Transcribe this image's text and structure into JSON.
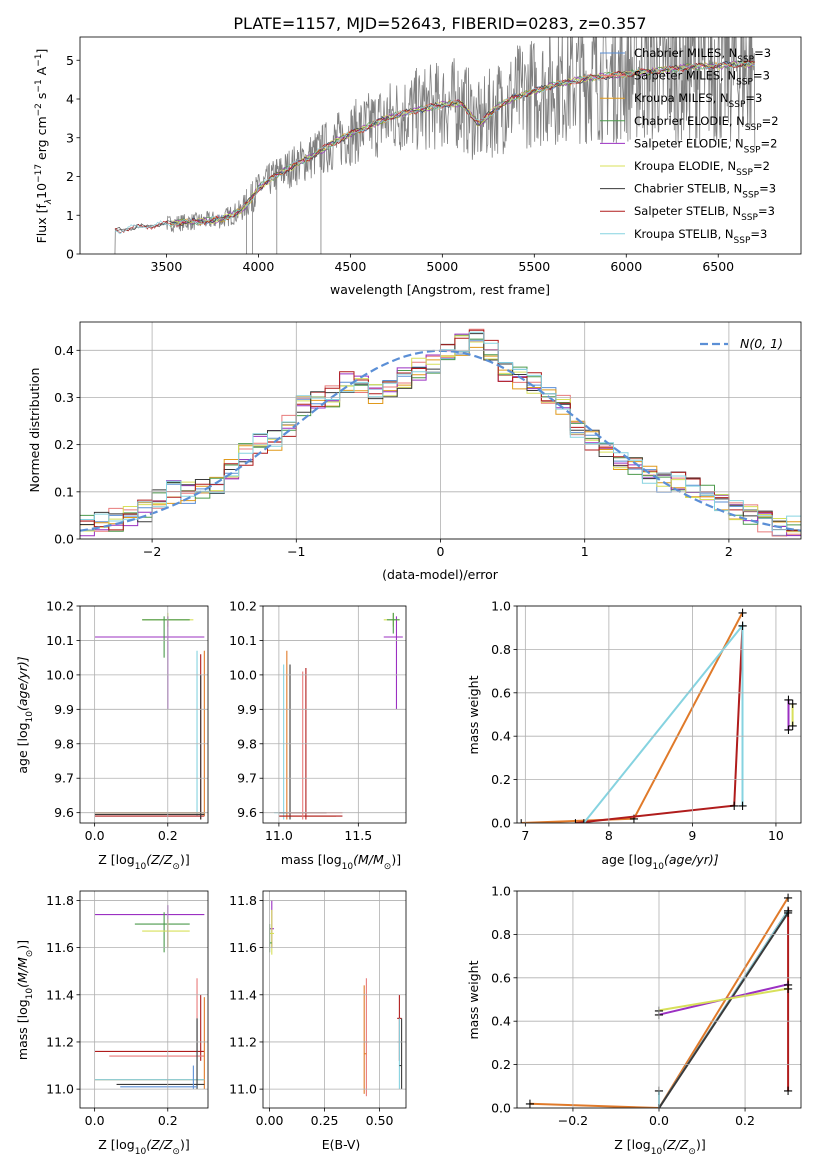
{
  "figure_title": "PLATE=1157, MJD=52643, FIBERID=0283, z=0.357",
  "colors": {
    "chabrier_miles": "#5b8fd6",
    "salpeter_miles": "#e87b7b",
    "kroupa_miles": "#e09a1c",
    "chabrier_elodie": "#4c9a4c",
    "salpeter_elodie": "#9b30c2",
    "kroupa_elodie": "#d8e05a",
    "chabrier_stelib": "#3a3a3a",
    "salpeter_stelib": "#b01c1c",
    "kroupa_stelib": "#86d3e0",
    "spectrum": "#808080",
    "gaussian": "#5b8fd6",
    "orange_model": "#e07a2a"
  },
  "chart_data": [
    {
      "id": "spectrum",
      "type": "line",
      "xlabel": "wavelength [Angstrom, rest frame]",
      "ylabel_main": "Flux [f",
      "ylabel_sub": "λ",
      "ylabel_rest": "10",
      "ylabel_exp1": "−17",
      "ylabel_mid": " erg cm",
      "ylabel_exp2": "−2",
      "ylabel_end": " s",
      "ylabel_exp3": "−1",
      "ylabel_a": " A",
      "ylabel_exp4": "−1",
      "ylabel_close": "]",
      "xlim": [
        3030,
        6950
      ],
      "ylim": [
        0,
        5.6
      ],
      "xticks": [
        3500,
        4000,
        4500,
        5000,
        5500,
        6000,
        6500
      ],
      "yticks": [
        0,
        1,
        2,
        3,
        4,
        5
      ],
      "grid": false,
      "legend_position": "right",
      "legend": [
        {
          "label": "Chabrier MILES, N",
          "sub": "SSP",
          "suffix": "=3",
          "color": "chabrier_miles"
        },
        {
          "label": "Salpeter MILES, N",
          "sub": "SSP",
          "suffix": "=3",
          "color": "salpeter_miles"
        },
        {
          "label": "Kroupa MILES, N",
          "sub": "SSP",
          "suffix": "=3",
          "color": "kroupa_miles"
        },
        {
          "label": "Chabrier ELODIE, N",
          "sub": "SSP",
          "suffix": "=2",
          "color": "chabrier_elodie"
        },
        {
          "label": "Salpeter ELODIE, N",
          "sub": "SSP",
          "suffix": "=2",
          "color": "salpeter_elodie"
        },
        {
          "label": "Kroupa ELODIE, N",
          "sub": "SSP",
          "suffix": "=2",
          "color": "kroupa_elodie"
        },
        {
          "label": "Chabrier STELIB, N",
          "sub": "SSP",
          "suffix": "=3",
          "color": "chabrier_stelib"
        },
        {
          "label": "Salpeter STELIB, N",
          "sub": "SSP",
          "suffix": "=3",
          "color": "salpeter_stelib"
        },
        {
          "label": "Kroupa STELIB, N",
          "sub": "SSP",
          "suffix": "=3",
          "color": "kroupa_stelib"
        }
      ],
      "model_continuum": {
        "x": [
          3220,
          3300,
          3400,
          3500,
          3600,
          3700,
          3800,
          3900,
          3950,
          4000,
          4100,
          4200,
          4300,
          4400,
          4500,
          4600,
          4700,
          4800,
          4900,
          5000,
          5100,
          5200,
          5300,
          5400,
          5500,
          5600,
          5700,
          5800,
          5900,
          6000,
          6100,
          6200,
          6300,
          6400,
          6500,
          6600,
          6700
        ],
        "y": [
          0.6,
          0.66,
          0.72,
          0.78,
          0.82,
          0.85,
          0.9,
          1.1,
          1.35,
          1.7,
          2.05,
          2.3,
          2.55,
          2.85,
          3.1,
          3.3,
          3.5,
          3.65,
          3.75,
          3.85,
          3.9,
          3.35,
          3.8,
          4.05,
          4.2,
          4.35,
          4.45,
          4.55,
          4.6,
          4.65,
          4.7,
          4.75,
          4.8,
          4.85,
          4.85,
          4.9,
          4.9
        ]
      }
    },
    {
      "id": "residuals",
      "type": "line",
      "xlabel": "(data-model)/error",
      "ylabel": "Normed distribution",
      "xlim": [
        -2.5,
        2.5
      ],
      "ylim": [
        0,
        0.46
      ],
      "xticks": [
        -2,
        -1,
        0,
        1,
        2
      ],
      "yticks": [
        0.0,
        0.1,
        0.2,
        0.3,
        0.4
      ],
      "grid": true,
      "legend_position": "top-right",
      "legend_label": "N(0, 1)",
      "gaussian": {
        "mu": 0,
        "sigma": 1
      },
      "bin_width": 0.1,
      "histogram_shape": {
        "x": [
          -2.45,
          -2.35,
          -2.25,
          -2.15,
          -2.05,
          -1.95,
          -1.85,
          -1.75,
          -1.65,
          -1.55,
          -1.45,
          -1.35,
          -1.25,
          -1.15,
          -1.05,
          -0.95,
          -0.85,
          -0.75,
          -0.65,
          -0.55,
          -0.45,
          -0.35,
          -0.25,
          -0.15,
          -0.05,
          0.05,
          0.15,
          0.25,
          0.35,
          0.45,
          0.55,
          0.65,
          0.75,
          0.85,
          0.95,
          1.05,
          1.15,
          1.25,
          1.35,
          1.45,
          1.55,
          1.65,
          1.75,
          1.85,
          1.95,
          2.05,
          2.15,
          2.25,
          2.35,
          2.45
        ],
        "y": [
          0.03,
          0.035,
          0.04,
          0.05,
          0.06,
          0.08,
          0.1,
          0.1,
          0.11,
          0.12,
          0.15,
          0.18,
          0.2,
          0.21,
          0.24,
          0.28,
          0.3,
          0.3,
          0.33,
          0.33,
          0.31,
          0.32,
          0.34,
          0.36,
          0.37,
          0.39,
          0.41,
          0.42,
          0.4,
          0.35,
          0.34,
          0.33,
          0.3,
          0.28,
          0.23,
          0.21,
          0.19,
          0.17,
          0.15,
          0.14,
          0.12,
          0.12,
          0.11,
          0.09,
          0.08,
          0.06,
          0.05,
          0.04,
          0.03,
          0.03
        ]
      }
    },
    {
      "id": "age_vs_Z",
      "type": "scatter",
      "xlabel": "Z [log",
      "xlabel_sub": "10",
      "xlabel_rest": "(Z/Z",
      "xlabel_sun": "⊙",
      "xlabel_end": ")]",
      "ylabel": "age  [log",
      "ylabel_sub": "10",
      "ylabel_rest": "(age/yr)]",
      "xlim": [
        -0.04,
        0.31
      ],
      "ylim": [
        9.57,
        10.2
      ],
      "xticks": [
        0.0,
        0.2
      ],
      "yticks": [
        9.6,
        9.7,
        9.8,
        9.9,
        10.0,
        10.1,
        10.2
      ],
      "grid": true
    },
    {
      "id": "age_vs_mass",
      "type": "scatter",
      "xlabel": "mass [log",
      "xlabel_sub": "10",
      "xlabel_rest": "(M/M",
      "xlabel_sun": "⊙",
      "xlabel_end": ")]",
      "xlim": [
        10.9,
        11.8
      ],
      "ylim": [
        9.57,
        10.2
      ],
      "xticks": [
        11.0,
        11.5
      ],
      "yticks": [
        9.6,
        9.7,
        9.8,
        9.9,
        10.0,
        10.1,
        10.2
      ],
      "grid": true
    },
    {
      "id": "massweight_vs_age",
      "type": "line",
      "xlabel": "age  [log",
      "xlabel_sub": "10",
      "xlabel_rest": "(age/yr)]",
      "ylabel": "mass weight",
      "xlim": [
        6.9,
        10.3
      ],
      "ylim": [
        0,
        1.0
      ],
      "xticks": [
        7,
        8,
        9,
        10
      ],
      "yticks": [
        0.0,
        0.2,
        0.4,
        0.6,
        0.8,
        1.0
      ],
      "grid": true,
      "series": [
        {
          "color": "orange_model",
          "x": [
            6.95,
            8.3,
            9.6
          ],
          "y": [
            0.0,
            0.02,
            0.97
          ]
        },
        {
          "color": "salpeter_stelib",
          "x": [
            7.6,
            9.5,
            9.6
          ],
          "y": [
            0.0,
            0.08,
            0.91
          ]
        },
        {
          "color": "kroupa_stelib",
          "x": [
            7.7,
            9.6,
            9.6
          ],
          "y": [
            0.0,
            0.91,
            0.08
          ]
        },
        {
          "color": "salpeter_elodie",
          "x": [
            10.15,
            10.15
          ],
          "y": [
            0.43,
            0.57
          ]
        },
        {
          "color": "kroupa_elodie",
          "x": [
            10.2,
            10.2
          ],
          "y": [
            0.45,
            0.55
          ]
        }
      ]
    },
    {
      "id": "mass_vs_Z",
      "type": "scatter",
      "xlabel": "Z [log",
      "xlabel_sub": "10",
      "xlabel_rest": "(Z/Z",
      "xlabel_sun": "⊙",
      "xlabel_end": ")]",
      "ylabel": "mass [log",
      "ylabel_sub": "10",
      "ylabel_rest": "(M/M",
      "ylabel_sun": "⊙",
      "ylabel_end": ")]",
      "xlim": [
        -0.04,
        0.31
      ],
      "ylim": [
        10.92,
        11.84
      ],
      "xticks": [
        0.0,
        0.2
      ],
      "yticks": [
        11.0,
        11.2,
        11.4,
        11.6,
        11.8
      ],
      "grid": true
    },
    {
      "id": "mass_vs_ebv",
      "type": "scatter",
      "xlabel": "E(B-V)",
      "xlim": [
        -0.03,
        0.62
      ],
      "ylim": [
        10.92,
        11.84
      ],
      "xticks": [
        0.0,
        0.25,
        0.5
      ],
      "yticks": [
        11.0,
        11.2,
        11.4,
        11.6,
        11.8
      ],
      "grid": true
    },
    {
      "id": "massweight_vs_Z",
      "type": "line",
      "xlabel": "Z [log",
      "xlabel_sub": "10",
      "xlabel_rest": "(Z/Z",
      "xlabel_sun": "⊙",
      "xlabel_end": ")]",
      "ylabel": "mass weight",
      "xlim": [
        -0.33,
        0.33
      ],
      "ylim": [
        0,
        1.0
      ],
      "xticks": [
        -0.2,
        0.0,
        0.2
      ],
      "yticks": [
        0.0,
        0.2,
        0.4,
        0.6,
        0.8,
        1.0
      ],
      "grid": true,
      "series": [
        {
          "color": "orange_model",
          "x": [
            -0.3,
            0.0,
            0.3
          ],
          "y": [
            0.02,
            0.0,
            0.97
          ]
        },
        {
          "color": "salpeter_stelib",
          "x": [
            0.0,
            0.3,
            0.3
          ],
          "y": [
            0.0,
            0.91,
            0.08
          ]
        },
        {
          "color": "kroupa_stelib",
          "x": [
            0.0,
            0.0,
            0.3
          ],
          "y": [
            0.08,
            0.0,
            0.91
          ]
        },
        {
          "color": "chabrier_stelib",
          "x": [
            0.0,
            0.3
          ],
          "y": [
            0.0,
            0.9
          ]
        },
        {
          "color": "salpeter_elodie",
          "x": [
            0.0,
            0.3
          ],
          "y": [
            0.43,
            0.57
          ]
        },
        {
          "color": "kroupa_elodie",
          "x": [
            0.0,
            0.3
          ],
          "y": [
            0.45,
            0.55
          ]
        }
      ]
    }
  ]
}
